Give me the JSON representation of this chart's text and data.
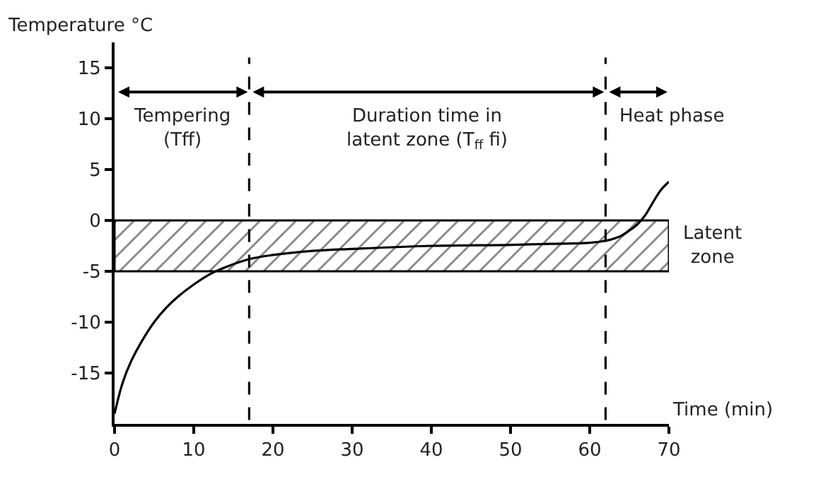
{
  "chart_data": {
    "type": "line",
    "xlabel": "Time (min)",
    "ylabel": "Temperature °C",
    "x": [
      0,
      1,
      2,
      3.5,
      5,
      6.5,
      8,
      10,
      12,
      14,
      17,
      20,
      25,
      30,
      40,
      50,
      55,
      60,
      62,
      63,
      64,
      65,
      66,
      67,
      68,
      69,
      70
    ],
    "series": [
      {
        "color": "#000000",
        "values": [
          -19,
          -16,
          -14,
          -11.8,
          -10,
          -8.6,
          -7.5,
          -6.3,
          -5.3,
          -4.6,
          -3.8,
          -3.4,
          -3.0,
          -2.8,
          -2.5,
          -2.4,
          -2.3,
          -2.2,
          -2.0,
          -1.8,
          -1.5,
          -1.0,
          -0.4,
          0.5,
          1.8,
          3.0,
          3.8
        ]
      }
    ],
    "xlim": [
      0,
      70
    ],
    "ylim": [
      -20,
      17.5
    ],
    "xticks": [
      0,
      10,
      20,
      30,
      40,
      50,
      60,
      70
    ],
    "yticks": [
      -15,
      -10,
      -5,
      0,
      5,
      10,
      15
    ],
    "ref_lines": [
      {
        "axis": "x",
        "value": 17,
        "line_style": "dashed",
        "color": "#000000"
      },
      {
        "axis": "x",
        "value": 62,
        "line_style": "dashed",
        "color": "#000000"
      }
    ],
    "bands": [
      {
        "axis": "y",
        "from": -5,
        "to": 0,
        "label": "Latent\nzone",
        "color": "#000000"
      }
    ],
    "annotations": [
      "Tempering\n(Tff)",
      "Duration time in\nlatent zone (T$_{ff}$ fi)",
      "Heat phase"
    ]
  }
}
